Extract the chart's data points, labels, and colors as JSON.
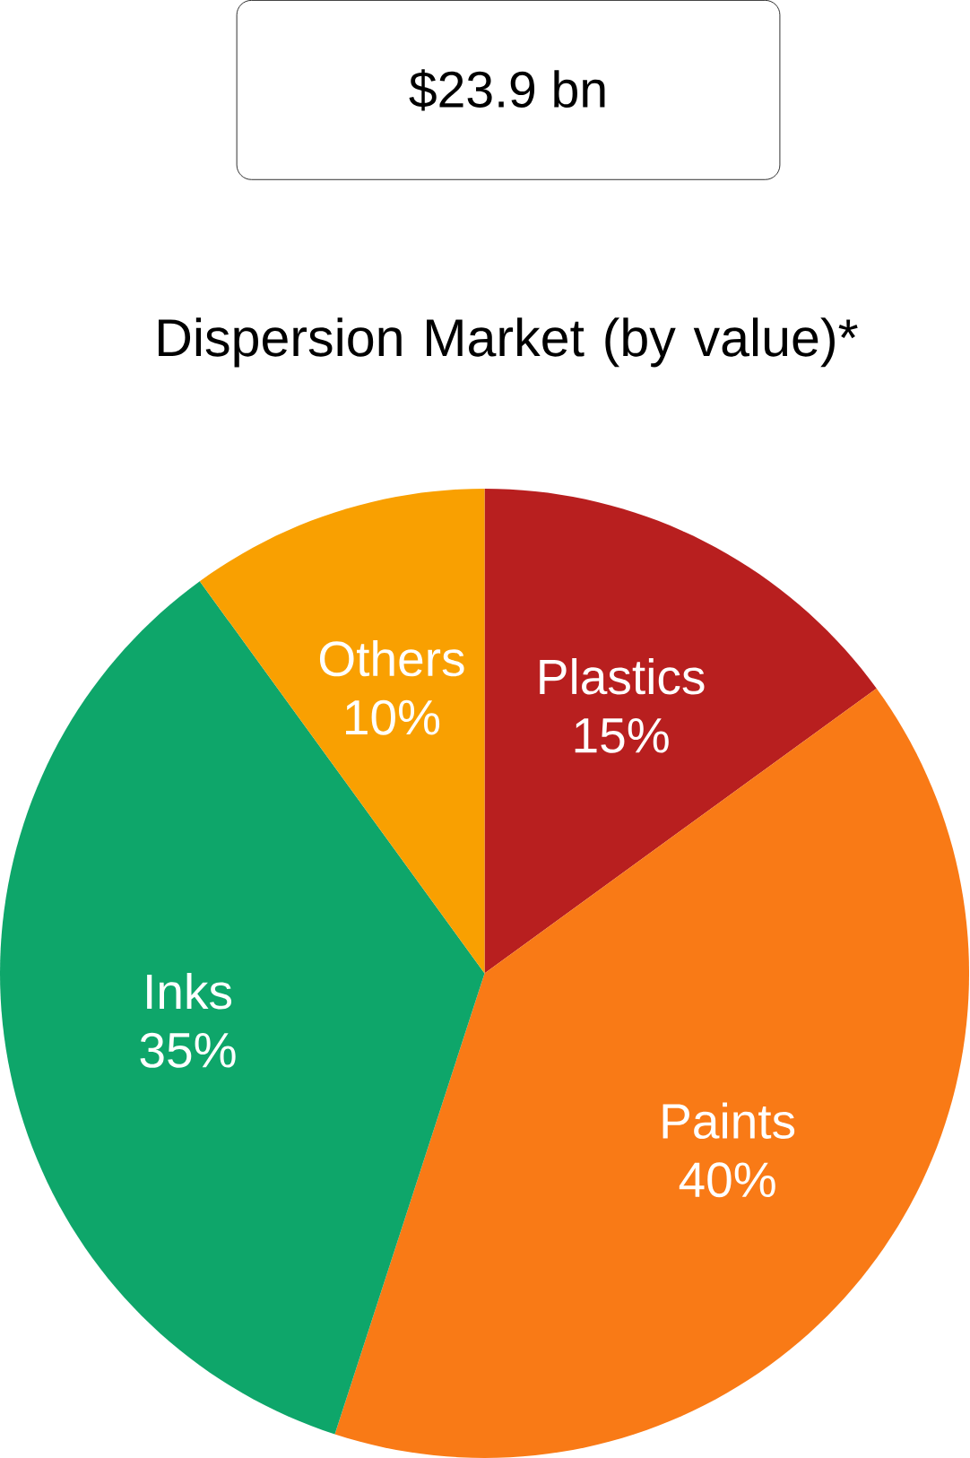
{
  "chart_data": {
    "type": "pie",
    "title": "Dispersion Market (by value)*",
    "annotations": [
      "$23.9 bn"
    ],
    "categories": [
      "Plastics",
      "Paints",
      "Inks",
      "Others"
    ],
    "values": [
      15,
      40,
      35,
      10
    ],
    "value_labels": [
      "15%",
      "40%",
      "35%",
      "10%"
    ],
    "colors": [
      "#b81f1f",
      "#f97a16",
      "#0ea66a",
      "#f9a001"
    ]
  }
}
